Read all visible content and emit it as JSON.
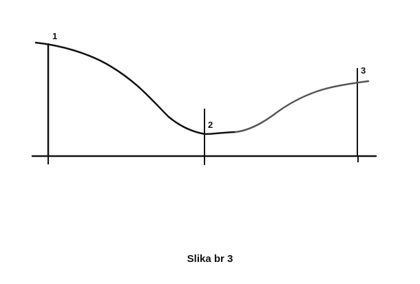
{
  "diagram": {
    "points": [
      {
        "id": "point-1",
        "label": "1"
      },
      {
        "id": "point-2",
        "label": "2"
      },
      {
        "id": "point-3",
        "label": "3"
      }
    ],
    "colors": {
      "ink": "#111111",
      "curve_right": "#555555",
      "background": "#ffffff"
    }
  },
  "caption": "Slika br 3"
}
